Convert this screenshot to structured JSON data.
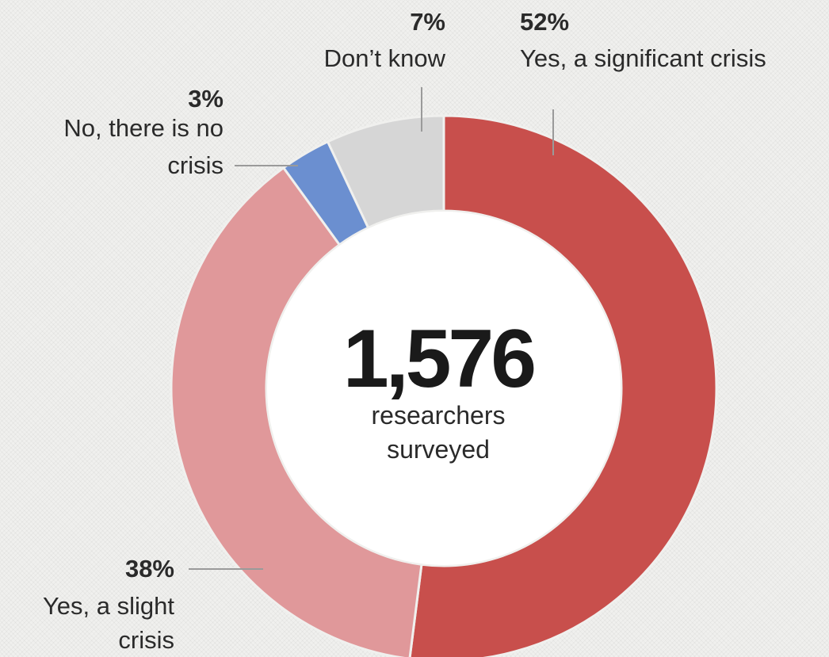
{
  "chart_data": {
    "type": "pie",
    "variant": "donut",
    "start_angle_deg": 0,
    "direction": "clockwise",
    "categories": [
      "Yes, a significant crisis",
      "Yes, a slight crisis",
      "No, there is no crisis",
      "Don't know"
    ],
    "values": [
      52,
      38,
      3,
      7
    ],
    "value_labels": [
      "52%",
      "38%",
      "3%",
      "7%"
    ],
    "colors": [
      "#c84f4c",
      "#e0989a",
      "#6b8fd0",
      "#d6d6d6"
    ],
    "label_lines": [
      [
        "Yes, a significant crisis"
      ],
      [
        "Yes, a slight",
        "crisis"
      ],
      [
        "No, there is no",
        "crisis"
      ],
      [
        "Don’t know"
      ]
    ],
    "center": {
      "number": "1,576",
      "line1": "researchers",
      "line2": "surveyed"
    }
  }
}
